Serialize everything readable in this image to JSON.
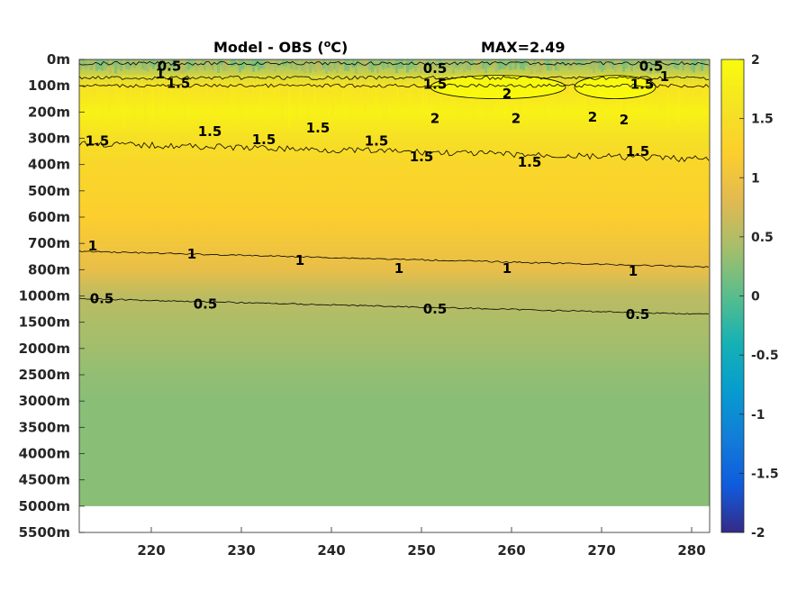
{
  "chart_data": {
    "type": "heatmap",
    "title": {
      "left": "Model - OBS (",
      "superscript": "o",
      "unit_after": "C)",
      "right": "MAX=2.49"
    },
    "x_ticks": [
      220,
      230,
      240,
      250,
      260,
      270,
      280
    ],
    "x_tick_labels": [
      "220",
      "230",
      "240",
      "250",
      "260",
      "270",
      "280"
    ],
    "xlim": [
      212,
      282
    ],
    "y_tick_labels": [
      "0m",
      "100m",
      "200m",
      "300m",
      "400m",
      "500m",
      "600m",
      "700m",
      "800m",
      "1000m",
      "1500m",
      "2000m",
      "2500m",
      "3000m",
      "3500m",
      "4000m",
      "4500m",
      "5000m",
      "5500m"
    ],
    "data_bottom_level": "5000m",
    "colorbar": {
      "clim": [
        -2,
        2
      ],
      "ticks": [
        2,
        1.5,
        1,
        0.5,
        0,
        -0.5,
        -1,
        -1.5,
        -2
      ],
      "tick_labels": [
        "2",
        "1.5",
        "1",
        "0.5",
        "0",
        "-0.5",
        "-1",
        "-1.5",
        "-2"
      ],
      "colormap": "parula"
    },
    "depth_profile": [
      {
        "level": "0m",
        "value": 0.3
      },
      {
        "level": "100m",
        "value": 1.5
      },
      {
        "level": "200m",
        "value": 1.85
      },
      {
        "level": "300m",
        "value": 1.55
      },
      {
        "level": "400m",
        "value": 1.35
      },
      {
        "level": "500m",
        "value": 1.3
      },
      {
        "level": "600m",
        "value": 1.2
      },
      {
        "level": "700m",
        "value": 1.05
      },
      {
        "level": "800m",
        "value": 0.9
      },
      {
        "level": "1000m",
        "value": 0.55
      },
      {
        "level": "1500m",
        "value": 0.45
      },
      {
        "level": "2000m",
        "value": 0.38
      },
      {
        "level": "2500m",
        "value": 0.3
      },
      {
        "level": "3000m",
        "value": 0.25
      },
      {
        "level": "3500m",
        "value": 0.25
      },
      {
        "level": "4000m",
        "value": 0.25
      },
      {
        "level": "4500m",
        "value": 0.25
      },
      {
        "level": "5000m",
        "value": 0.25
      }
    ],
    "warm_patches": [
      {
        "x_range": [
          251,
          266
        ],
        "level": "200m",
        "value": 2.1
      },
      {
        "x_range": [
          267,
          276
        ],
        "level": "200m",
        "value": 2.0
      }
    ],
    "contours": [
      {
        "level": 0.5,
        "label": "0.5",
        "depth_index": 0.15
      },
      {
        "level": 1.0,
        "label": "1",
        "depth_index": 0.7
      },
      {
        "level": 1.5,
        "label": "1.5",
        "depth_index": 1.0
      },
      {
        "level": 1.5,
        "label": "1.5",
        "depth_index": 3.2
      },
      {
        "level": 1.0,
        "label": "1",
        "depth_index": 7.3
      },
      {
        "level": 0.5,
        "label": "0.5",
        "depth_index": 9.1
      }
    ],
    "contour_labels": [
      {
        "text": "0.5",
        "x": 222,
        "level_index": 0.25
      },
      {
        "text": "1",
        "x": 221,
        "level_index": 0.55
      },
      {
        "text": "1.5",
        "x": 223,
        "level_index": 0.9
      },
      {
        "text": "0.5",
        "x": 251.5,
        "level_index": 0.35
      },
      {
        "text": "1.5",
        "x": 251.5,
        "level_index": 0.95
      },
      {
        "text": "0.5",
        "x": 275.5,
        "level_index": 0.25
      },
      {
        "text": "1",
        "x": 277,
        "level_index": 0.65
      },
      {
        "text": "1.5",
        "x": 274.5,
        "level_index": 0.95
      },
      {
        "text": "2",
        "x": 251.5,
        "level_index": 2.25
      },
      {
        "text": "2",
        "x": 259.5,
        "level_index": 1.3
      },
      {
        "text": "2",
        "x": 260.5,
        "level_index": 2.25
      },
      {
        "text": "2",
        "x": 269,
        "level_index": 2.2
      },
      {
        "text": "2",
        "x": 272.5,
        "level_index": 2.3
      },
      {
        "text": "1.5",
        "x": 214,
        "level_index": 3.1
      },
      {
        "text": "1.5",
        "x": 226.5,
        "level_index": 2.75
      },
      {
        "text": "1.5",
        "x": 232.5,
        "level_index": 3.05
      },
      {
        "text": "1.5",
        "x": 238.5,
        "level_index": 2.6
      },
      {
        "text": "1.5",
        "x": 245,
        "level_index": 3.1
      },
      {
        "text": "1.5",
        "x": 250,
        "level_index": 3.7
      },
      {
        "text": "1.5",
        "x": 262,
        "level_index": 3.9
      },
      {
        "text": "1.5",
        "x": 274,
        "level_index": 3.5
      },
      {
        "text": "1",
        "x": 213.5,
        "level_index": 7.1
      },
      {
        "text": "1",
        "x": 224.5,
        "level_index": 7.4
      },
      {
        "text": "1",
        "x": 236.5,
        "level_index": 7.65
      },
      {
        "text": "1",
        "x": 247.5,
        "level_index": 7.95
      },
      {
        "text": "1",
        "x": 259.5,
        "level_index": 7.95
      },
      {
        "text": "1",
        "x": 273.5,
        "level_index": 8.05
      },
      {
        "text": "0.5",
        "x": 214.5,
        "level_index": 9.1
      },
      {
        "text": "0.5",
        "x": 226,
        "level_index": 9.3
      },
      {
        "text": "0.5",
        "x": 251.5,
        "level_index": 9.5
      },
      {
        "text": "0.5",
        "x": 274,
        "level_index": 9.7
      }
    ]
  }
}
